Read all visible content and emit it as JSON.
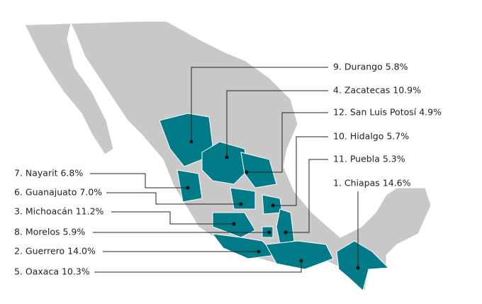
{
  "annotations": [
    "9. Durango 5.8%",
    "4. Zacatecas 10.9%",
    "12. San Luis Potosí 4.9%",
    "10. Hidalgo 5.7%",
    "11. Puebla 5.3%",
    "1. Chiapas 14.6%",
    "7. Nayarit 6.8%",
    "6. Guanajuato 7.0%",
    "3. Michoacán 11.2%",
    "8. Morelos 5.9%",
    "2. Guerrero 14.0%",
    "5. Oaxaca 10.3%"
  ]
}
